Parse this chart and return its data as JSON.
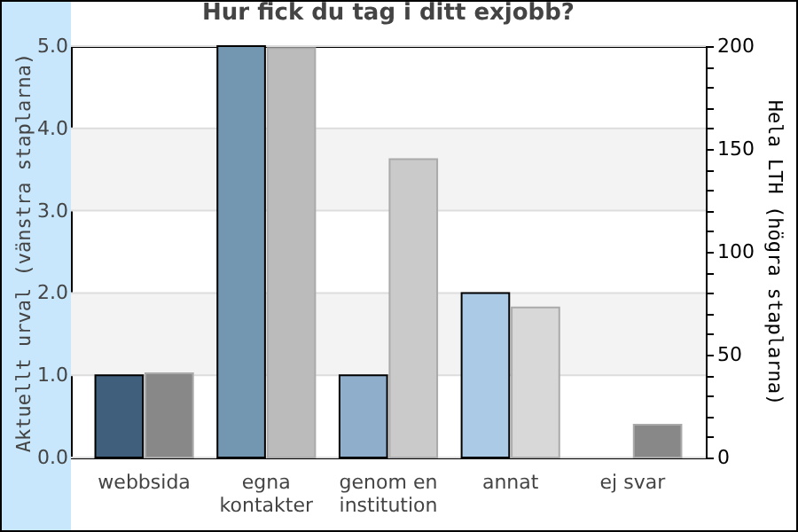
{
  "chart_data": {
    "type": "bar",
    "title": "Hur fick du tag i ditt exjobb?",
    "ylabel": "Aktuellt urval (vänstra staplarna)",
    "y2label": "Hela LTH (högra staplarna)",
    "categories": [
      "webbsida",
      "egna kontakter",
      "genom en institution",
      "annat",
      "ej svar"
    ],
    "series": [
      {
        "colors": [
          "#3f5f7c",
          "#7396b1",
          "#8eaecb",
          "#abcae6",
          "#abcae6"
        ],
        "values": [
          1,
          5,
          1,
          2,
          0
        ]
      },
      {
        "axis": "y2",
        "colors": [
          "#888888",
          "#bbbbbb",
          "#cacaca",
          "#d8d8d8",
          "#888888"
        ],
        "values": [
          41,
          199,
          145,
          73,
          16
        ]
      }
    ],
    "ylim": [
      0,
      5
    ],
    "yticks": [
      {
        "value": 0,
        "label": "0.0"
      },
      {
        "value": 1,
        "label": "1.0"
      },
      {
        "value": 2,
        "label": "2.0"
      },
      {
        "value": 3,
        "label": "3.0"
      },
      {
        "value": 4,
        "label": "4.0"
      },
      {
        "value": 5,
        "label": "5.0"
      }
    ],
    "y2lim": [
      0,
      200
    ],
    "y2ticks": [
      0,
      {
        "value": 10,
        "label": null
      },
      {
        "value": 20,
        "label": null
      },
      {
        "value": 30,
        "label": null
      },
      {
        "value": 40,
        "label": null
      },
      50,
      {
        "value": 60,
        "label": null
      },
      {
        "value": 70,
        "label": null
      },
      {
        "value": 80,
        "label": null
      },
      {
        "value": 90,
        "label": null
      },
      100,
      {
        "value": 110,
        "label": null
      },
      {
        "value": 120,
        "label": null
      },
      {
        "value": 130,
        "label": null
      },
      {
        "value": 140,
        "label": null
      },
      150,
      {
        "value": 160,
        "label": null
      },
      {
        "value": 170,
        "label": null
      },
      {
        "value": 180,
        "label": null
      },
      {
        "value": 190,
        "label": null
      },
      200
    ],
    "grid": "y",
    "bands": [
      {
        "axis": "y",
        "from": 1,
        "to": 2,
        "color": "#f3f3f3"
      },
      {
        "axis": "y",
        "from": 3,
        "to": 4,
        "color": "#f3f3f3"
      }
    ]
  }
}
